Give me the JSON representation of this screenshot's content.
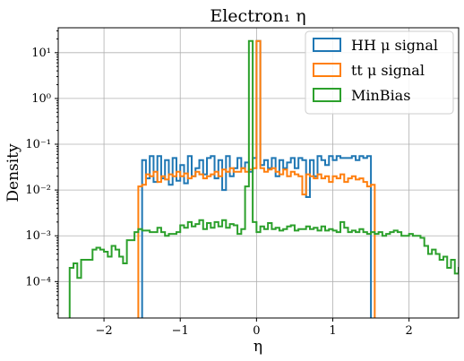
{
  "chart_data": {
    "type": "histogram-step",
    "title": "Electron₁ η",
    "xlabel": "η",
    "ylabel": "Density",
    "xlim": [
      -2.6,
      2.65
    ],
    "ylim": [
      1.6e-05,
      35
    ],
    "yscale": "log",
    "grid": true,
    "legend_position": "top-right",
    "x_ticks": [
      -2,
      -1,
      0,
      1,
      2
    ],
    "x_tick_labels": [
      "−2",
      "−1",
      "0",
      "1",
      "2"
    ],
    "y_ticks": [
      0.0001,
      0.001,
      0.01,
      0.1,
      1,
      10
    ],
    "y_tick_labels": [
      "10⁻⁴",
      "10⁻³",
      "10⁻²",
      "10⁻¹",
      "10⁰",
      "10¹"
    ],
    "bin_width": 0.05,
    "series": [
      {
        "name": "HH μ signal",
        "color": "#1f77b4",
        "start": -1.5,
        "values": [
          0.045,
          0.018,
          0.055,
          0.015,
          0.055,
          0.018,
          0.045,
          0.013,
          0.05,
          0.016,
          0.035,
          0.014,
          0.055,
          0.02,
          0.03,
          0.045,
          0.022,
          0.05,
          0.055,
          0.018,
          0.045,
          0.01,
          0.055,
          0.02,
          0.03,
          0.05,
          0.03,
          0.04,
          0.025,
          0.05,
          18.0,
          0.035,
          0.045,
          0.03,
          0.05,
          0.02,
          0.045,
          0.03,
          0.04,
          0.05,
          0.03,
          0.05,
          0.045,
          0.007,
          0.045,
          0.02,
          0.055,
          0.045,
          0.035,
          0.055,
          0.045,
          0.055,
          0.05,
          0.05,
          0.05,
          0.055,
          0.045,
          0.055,
          0.05,
          0.055
        ]
      },
      {
        "name": "tt μ signal",
        "color": "#ff7f0e",
        "start": -1.55,
        "values": [
          0.012,
          0.013,
          0.022,
          0.02,
          0.025,
          0.015,
          0.02,
          0.017,
          0.022,
          0.02,
          0.025,
          0.02,
          0.023,
          0.018,
          0.02,
          0.025,
          0.022,
          0.018,
          0.02,
          0.022,
          0.025,
          0.02,
          0.028,
          0.025,
          0.03,
          0.025,
          0.025,
          0.03,
          0.025,
          0.028,
          0.03,
          18.0,
          0.03,
          0.025,
          0.028,
          0.03,
          0.025,
          0.022,
          0.028,
          0.02,
          0.025,
          0.022,
          0.02,
          0.008,
          0.022,
          0.02,
          0.018,
          0.022,
          0.018,
          0.02,
          0.015,
          0.02,
          0.018,
          0.022,
          0.015,
          0.018,
          0.02,
          0.017,
          0.018,
          0.015,
          0.012,
          0.013
        ]
      },
      {
        "name": "MinBias",
        "color": "#2ca02c",
        "start": -2.45,
        "values": [
          0.0002,
          0.00025,
          0.00012,
          0.0003,
          0.0003,
          0.0003,
          0.0005,
          0.00055,
          0.0005,
          0.00045,
          0.00035,
          0.0006,
          0.0005,
          0.00035,
          0.00025,
          0.0008,
          0.0008,
          0.0012,
          0.0014,
          0.0013,
          0.0013,
          0.0012,
          0.0012,
          0.0015,
          0.0012,
          0.001,
          0.0011,
          0.0011,
          0.0012,
          0.0017,
          0.0015,
          0.002,
          0.0016,
          0.0018,
          0.0022,
          0.0014,
          0.0019,
          0.0015,
          0.002,
          0.0016,
          0.0022,
          0.0015,
          0.0018,
          0.0017,
          0.0011,
          0.0014,
          0.012,
          18.0,
          0.002,
          0.0012,
          0.0016,
          0.0014,
          0.0019,
          0.0014,
          0.0015,
          0.0013,
          0.0014,
          0.0016,
          0.0017,
          0.0013,
          0.0014,
          0.0014,
          0.0016,
          0.0014,
          0.0015,
          0.0013,
          0.0016,
          0.0013,
          0.0014,
          0.0013,
          0.0012,
          0.002,
          0.0015,
          0.0012,
          0.0013,
          0.0012,
          0.0014,
          0.0012,
          0.0011,
          0.0012,
          0.0011,
          0.0012,
          0.001,
          0.0011,
          0.0012,
          0.0013,
          0.0012,
          0.001,
          0.001,
          0.0011,
          0.001,
          0.001,
          0.0009,
          0.0006,
          0.0004,
          0.0005,
          0.0004,
          0.0003,
          0.00035,
          0.0002,
          0.0003,
          0.00015,
          0.0002,
          0.00025,
          0.0002,
          0.00025,
          0.00025,
          0.0002,
          0.00015,
          5e-05
        ]
      }
    ]
  }
}
